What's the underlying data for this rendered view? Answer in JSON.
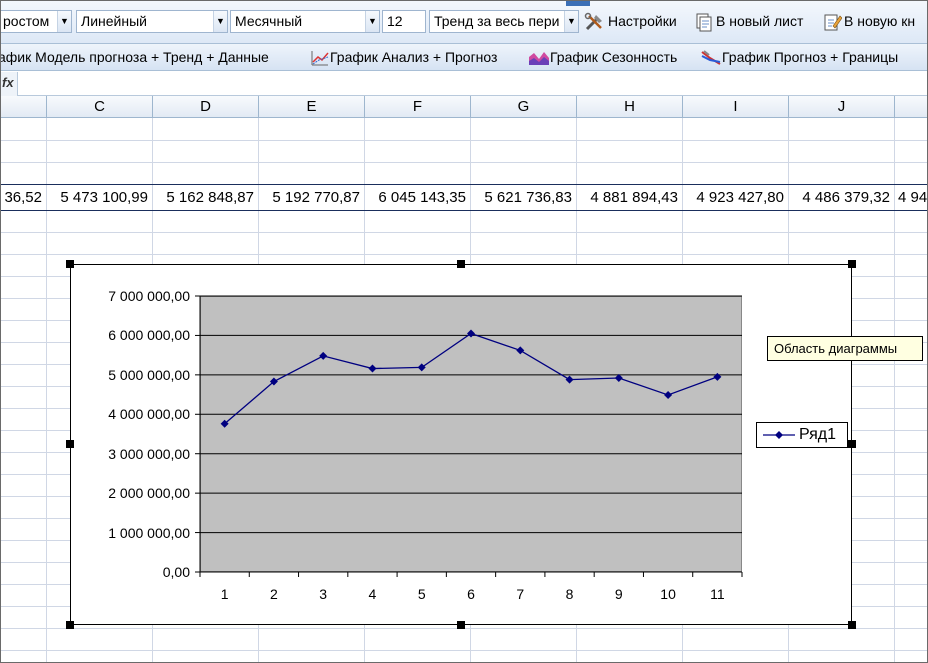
{
  "toolbar1": {
    "combo_growth": "ростом",
    "combo_model": "Линейный",
    "combo_period": "Месячный",
    "combo_number": "12",
    "combo_trend": "Тренд за весь пери",
    "settings_label": "Настройки",
    "new_sheet_label": "В новый лист",
    "new_book_label": "В новую кн"
  },
  "toolbar2": {
    "item1": "афик Модель прогноза + Тренд + Данные",
    "item2": "График Анализ + Прогноз",
    "item3": "График Сезонность",
    "item4": "График Прогноз + Границы"
  },
  "formula_bar": {
    "fx": "fx"
  },
  "columns": [
    "C",
    "D",
    "E",
    "F",
    "G",
    "H",
    "I",
    "J"
  ],
  "data_row": [
    "36,52",
    "5 473 100,99",
    "5 162 848,87",
    "5 192 770,87",
    "6 045 143,35",
    "5 621 736,83",
    "4 881 894,43",
    "4 923 427,80",
    "4 486 379,32",
    "4 94"
  ],
  "chart_data": {
    "type": "line",
    "categories": [
      "1",
      "2",
      "3",
      "4",
      "5",
      "6",
      "7",
      "8",
      "9",
      "10",
      "11"
    ],
    "series": [
      {
        "name": "Ряд1",
        "values": [
          3760000,
          4830000,
          5480000,
          5160000,
          5190000,
          6050000,
          5620000,
          4880000,
          4920000,
          4490000,
          4950000
        ]
      }
    ],
    "ylim": [
      0,
      7000000
    ],
    "yticks": [
      "0,00",
      "1 000 000,00",
      "2 000 000,00",
      "3 000 000,00",
      "4 000 000,00",
      "5 000 000,00",
      "6 000 000,00",
      "7 000 000,00"
    ],
    "legend": "right",
    "grid": true,
    "plot_bg": "#c0c0c0",
    "line_color": "#000080"
  },
  "tooltip": "Область диаграммы"
}
